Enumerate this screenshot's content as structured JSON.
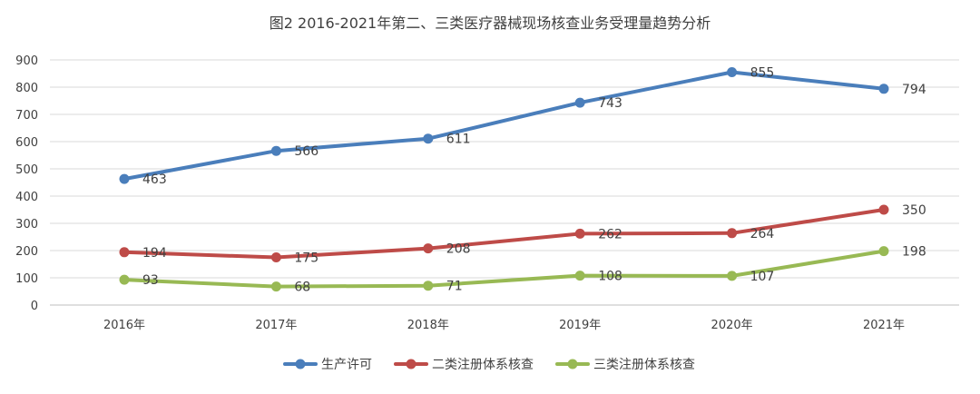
{
  "chart_data": {
    "type": "line",
    "title": "图2 2016-2021年第二、三类医疗器械现场核查业务受理量趋势分析",
    "categories": [
      "2016年",
      "2017年",
      "2018年",
      "2019年",
      "2020年",
      "2021年"
    ],
    "ylim": [
      0,
      900
    ],
    "yticks": [
      0,
      100,
      200,
      300,
      400,
      500,
      600,
      700,
      800,
      900
    ],
    "grid": true,
    "legend_position": "bottom",
    "series": [
      {
        "name": "生产许可",
        "color": "#4a7ebb",
        "values": [
          463,
          566,
          611,
          743,
          855,
          794
        ]
      },
      {
        "name": "二类注册体系核查",
        "color": "#be4b48",
        "values": [
          194,
          175,
          208,
          262,
          264,
          350
        ]
      },
      {
        "name": "三类注册体系核查",
        "color": "#98b954",
        "values": [
          93,
          68,
          71,
          108,
          107,
          198
        ]
      }
    ]
  }
}
